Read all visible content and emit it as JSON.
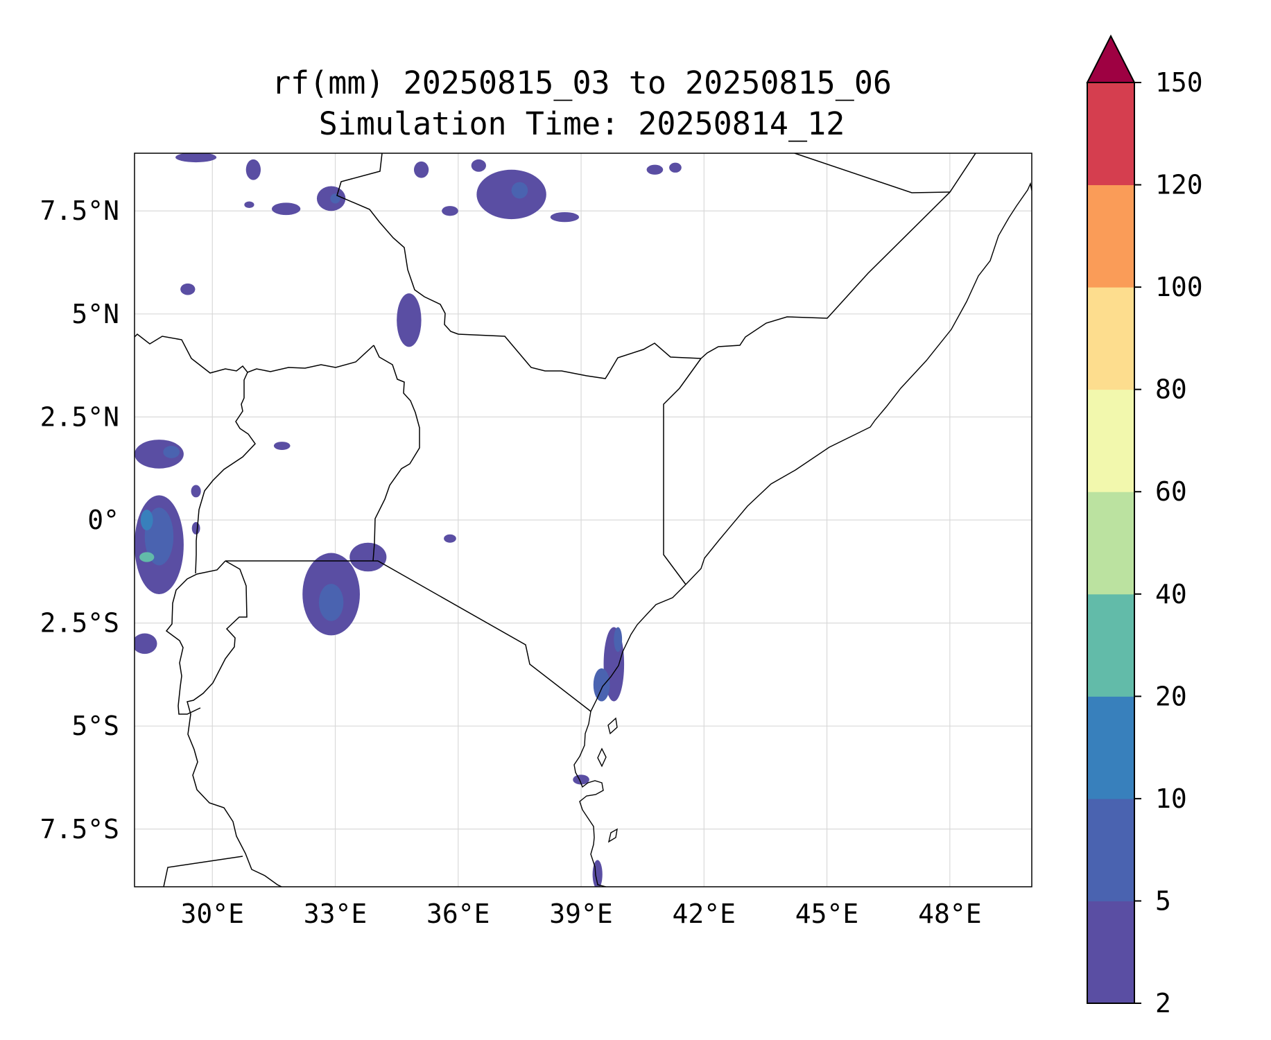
{
  "title": {
    "line1": "rf(mm) 20250815_03 to 20250815_06",
    "line2": "Simulation Time: 20250814_12"
  },
  "chart_data": {
    "type": "heatmap",
    "variable": "rf(mm)",
    "projection": "PlateCarree",
    "lon_range": [
      28.1,
      50.0
    ],
    "lat_range": [
      -8.9,
      8.9
    ],
    "x_ticks": [
      {
        "value": 30,
        "label": "30°E"
      },
      {
        "value": 33,
        "label": "33°E"
      },
      {
        "value": 36,
        "label": "36°E"
      },
      {
        "value": 39,
        "label": "39°E"
      },
      {
        "value": 42,
        "label": "42°E"
      },
      {
        "value": 45,
        "label": "45°E"
      },
      {
        "value": 48,
        "label": "48°E"
      }
    ],
    "y_ticks": [
      {
        "value": 7.5,
        "label": "7.5°N"
      },
      {
        "value": 5,
        "label": "5°N"
      },
      {
        "value": 2.5,
        "label": "2.5°N"
      },
      {
        "value": 0,
        "label": "0°"
      },
      {
        "value": -2.5,
        "label": "2.5°S"
      },
      {
        "value": -5,
        "label": "5°S"
      },
      {
        "value": -7.5,
        "label": "7.5°S"
      }
    ],
    "grid": true,
    "colorbar": {
      "levels": [
        2,
        5,
        10,
        20,
        40,
        60,
        80,
        100,
        120,
        150
      ],
      "labels": [
        "2",
        "5",
        "10",
        "20",
        "40",
        "60",
        "80",
        "100",
        "120",
        "150"
      ],
      "colors": [
        "#5a4ea3",
        "#4a63b0",
        "#3880bc",
        "#62bba9",
        "#bbe2a0",
        "#f2f8ad",
        "#fddd8e",
        "#fa9c58",
        "#d53e4f"
      ],
      "extend_color": "#9e0142",
      "extend": "max"
    },
    "rain_areas": [
      {
        "lon": 29.6,
        "lat": 8.8,
        "rx": 0.5,
        "ry": 0.12,
        "level": 1
      },
      {
        "lon": 31.0,
        "lat": 8.5,
        "rx": 0.18,
        "ry": 0.25,
        "level": 1
      },
      {
        "lon": 32.9,
        "lat": 7.8,
        "rx": 0.35,
        "ry": 0.3,
        "level": 1
      },
      {
        "lon": 33.0,
        "lat": 7.8,
        "rx": 0.12,
        "ry": 0.12,
        "level": 2
      },
      {
        "lon": 31.8,
        "lat": 7.55,
        "rx": 0.35,
        "ry": 0.15,
        "level": 1
      },
      {
        "lon": 30.9,
        "lat": 7.65,
        "rx": 0.12,
        "ry": 0.08,
        "level": 1
      },
      {
        "lon": 35.1,
        "lat": 8.5,
        "rx": 0.18,
        "ry": 0.2,
        "level": 1
      },
      {
        "lon": 37.3,
        "lat": 7.9,
        "rx": 0.85,
        "ry": 0.6,
        "level": 1
      },
      {
        "lon": 37.5,
        "lat": 8.0,
        "rx": 0.2,
        "ry": 0.2,
        "level": 2
      },
      {
        "lon": 38.6,
        "lat": 7.35,
        "rx": 0.35,
        "ry": 0.12,
        "level": 1
      },
      {
        "lon": 36.5,
        "lat": 8.6,
        "rx": 0.18,
        "ry": 0.15,
        "level": 1
      },
      {
        "lon": 40.8,
        "lat": 8.5,
        "rx": 0.2,
        "ry": 0.12,
        "level": 1
      },
      {
        "lon": 41.3,
        "lat": 8.55,
        "rx": 0.15,
        "ry": 0.12,
        "level": 1
      },
      {
        "lon": 35.8,
        "lat": 7.5,
        "rx": 0.2,
        "ry": 0.12,
        "level": 1
      },
      {
        "lon": 29.4,
        "lat": 5.6,
        "rx": 0.18,
        "ry": 0.14,
        "level": 1
      },
      {
        "lon": 34.8,
        "lat": 4.85,
        "rx": 0.3,
        "ry": 0.65,
        "level": 1
      },
      {
        "lon": 28.7,
        "lat": 1.6,
        "rx": 0.6,
        "ry": 0.35,
        "level": 1
      },
      {
        "lon": 29.0,
        "lat": 1.65,
        "rx": 0.2,
        "ry": 0.15,
        "level": 2
      },
      {
        "lon": 28.7,
        "lat": -0.6,
        "rx": 0.6,
        "ry": 1.2,
        "level": 1
      },
      {
        "lon": 28.7,
        "lat": -0.4,
        "rx": 0.35,
        "ry": 0.7,
        "level": 2
      },
      {
        "lon": 28.4,
        "lat": 0.0,
        "rx": 0.15,
        "ry": 0.25,
        "level": 3
      },
      {
        "lon": 28.4,
        "lat": -0.9,
        "rx": 0.18,
        "ry": 0.12,
        "level": 4
      },
      {
        "lon": 28.35,
        "lat": -3.0,
        "rx": 0.3,
        "ry": 0.25,
        "level": 1
      },
      {
        "lon": 31.7,
        "lat": 1.8,
        "rx": 0.2,
        "ry": 0.1,
        "level": 1
      },
      {
        "lon": 29.6,
        "lat": 0.7,
        "rx": 0.12,
        "ry": 0.15,
        "level": 1
      },
      {
        "lon": 29.6,
        "lat": -0.2,
        "rx": 0.1,
        "ry": 0.15,
        "level": 1
      },
      {
        "lon": 32.9,
        "lat": -1.8,
        "rx": 0.7,
        "ry": 1.0,
        "level": 1
      },
      {
        "lon": 33.8,
        "lat": -0.9,
        "rx": 0.45,
        "ry": 0.35,
        "level": 1
      },
      {
        "lon": 32.9,
        "lat": -2.0,
        "rx": 0.3,
        "ry": 0.45,
        "level": 2
      },
      {
        "lon": 39.8,
        "lat": -3.5,
        "rx": 0.25,
        "ry": 0.9,
        "level": 1
      },
      {
        "lon": 39.5,
        "lat": -4.0,
        "rx": 0.2,
        "ry": 0.4,
        "level": 2
      },
      {
        "lon": 39.9,
        "lat": -2.9,
        "rx": 0.1,
        "ry": 0.3,
        "level": 2
      },
      {
        "lon": 35.8,
        "lat": -0.45,
        "rx": 0.15,
        "ry": 0.1,
        "level": 1
      },
      {
        "lon": 39.0,
        "lat": -6.3,
        "rx": 0.2,
        "ry": 0.12,
        "level": 1
      },
      {
        "lon": 39.4,
        "lat": -8.6,
        "rx": 0.12,
        "ry": 0.35,
        "level": 1
      }
    ]
  }
}
